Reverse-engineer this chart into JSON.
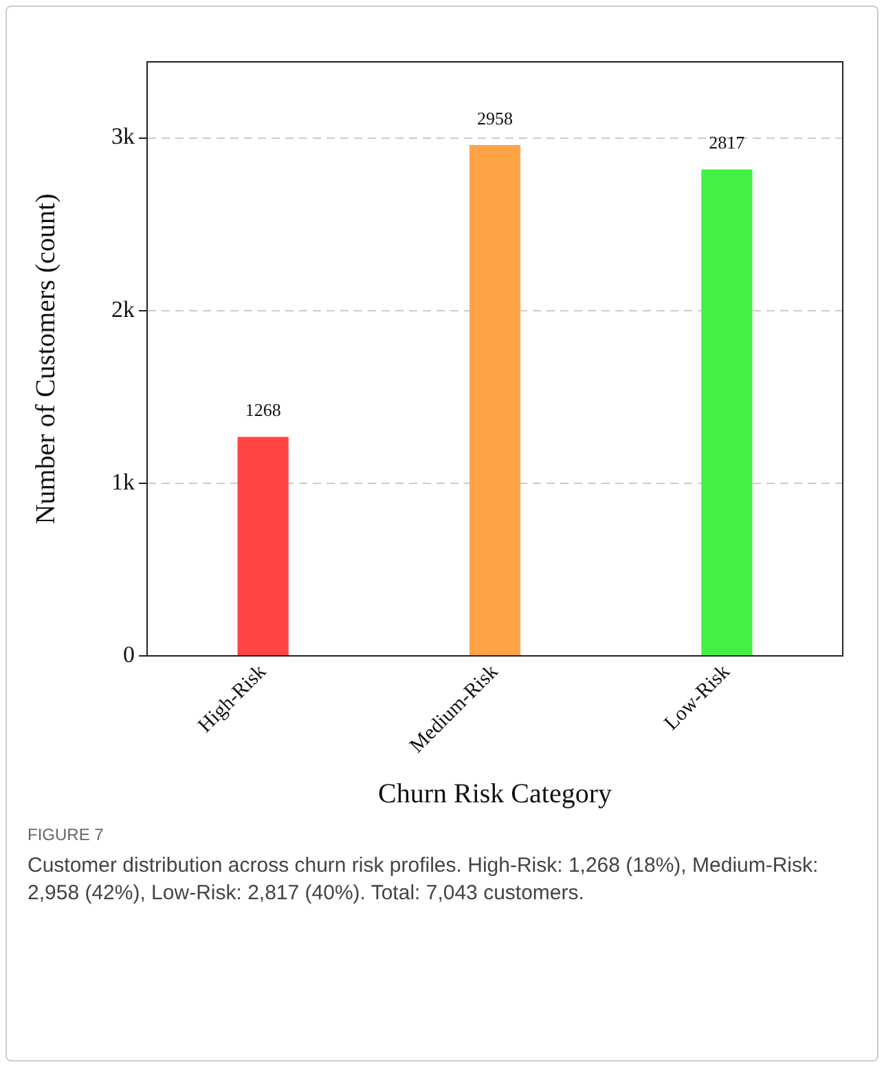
{
  "chart_data": {
    "type": "bar",
    "xlabel": "Churn Risk Category",
    "ylabel": "Number of Customers (count)",
    "categories": [
      "High-Risk",
      "Medium-Risk",
      "Low-Risk"
    ],
    "values": [
      1268,
      2958,
      2817
    ],
    "colors": [
      "#ff4444",
      "#ffa347",
      "#44f044"
    ],
    "ylim": [
      0,
      3440
    ],
    "yticks": [
      0,
      {
        "value": 1000,
        "label": "1k"
      },
      {
        "value": 2000,
        "label": "2k"
      },
      {
        "value": 3000,
        "label": "3k"
      }
    ],
    "grid": "y",
    "legend": false,
    "data_labels": true,
    "annotations": [
      "FIGURE 7",
      "Customer distribution across churn risk profiles. High-Risk: 1,268 (18%), Medium-Risk: 2,958 (42%), Low-Risk: 2,817 (40%). Total: 7,043 customers."
    ]
  }
}
